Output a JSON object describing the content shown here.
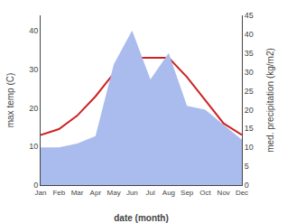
{
  "chart_data": {
    "type": "line",
    "categories": [
      "Jan",
      "Feb",
      "Mar",
      "Apr",
      "May",
      "Jun",
      "Jul",
      "Aug",
      "Sep",
      "Oct",
      "Nov",
      "Dec"
    ],
    "xlabel": "date (month)",
    "ylabel": "max temp (C)",
    "y2label": "med. precipitation (kg/m2)",
    "series": [
      {
        "type": "line",
        "color": "#cc2222",
        "values": [
          13,
          14.5,
          18,
          23,
          29,
          33,
          33,
          33,
          28,
          22,
          16,
          13
        ]
      },
      {
        "type": "area",
        "color": "#aabbee",
        "axis": "y2",
        "values": [
          10,
          10,
          11,
          13,
          32,
          41,
          28,
          35,
          21,
          20,
          16,
          12
        ]
      }
    ],
    "ylim": [
      0,
      44
    ],
    "yticks": [
      0,
      10,
      20,
      30,
      40
    ],
    "y2lim": [
      0,
      45
    ],
    "y2ticks": [
      0,
      5,
      10,
      15,
      20,
      25,
      30,
      35,
      40,
      45
    ],
    "grid": false
  }
}
